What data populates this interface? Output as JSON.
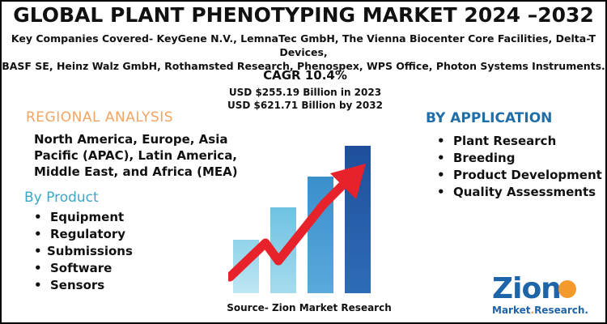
{
  "header": {
    "title": "GLOBAL PLANT PHENOTYPING MARKET 2024 –2032",
    "companies_line1": "Key Companies Covered- KeyGene N.V., LemnaTec GmbH, The Vienna Biocenter Core Facilities, Delta-T Devices,",
    "companies_line2": "BASF SE, Heinz Walz GmbH, Rothamsted Research, Phenospex, WPS Office, Photon Systems Instruments."
  },
  "stats": {
    "cagr": "CAGR 10.4%",
    "usd_2023": "USD $255.19 Billion in 2023",
    "usd_2032": "USD $621.71 Billion by 2032"
  },
  "regional": {
    "heading": "REGIONAL ANALYSIS",
    "text": "North America, Europe, Asia Pacific (APAC), Latin America, Middle East, and Africa (MEA)"
  },
  "product": {
    "heading": "By Product",
    "items": [
      "Equipment",
      "Regulatory",
      "Submissions",
      "Software",
      "Sensors"
    ]
  },
  "application": {
    "heading": "BY APPLICATION",
    "items": [
      "Plant Research",
      "Breeding",
      "Product Development",
      "Quality Assessments"
    ]
  },
  "source": "Source- Zion Market Research",
  "logo": {
    "main": "Zion",
    "sub_left": "Market",
    "sub_dot": ".",
    "sub_right": "Research."
  },
  "colors": {
    "regional_heading": "#f4a462",
    "product_heading": "#38a8c8",
    "application_heading": "#1f6ea8",
    "arrow": "#e8222a",
    "logo_blue": "#1d64a9",
    "logo_orange": "#f39a2b"
  }
}
